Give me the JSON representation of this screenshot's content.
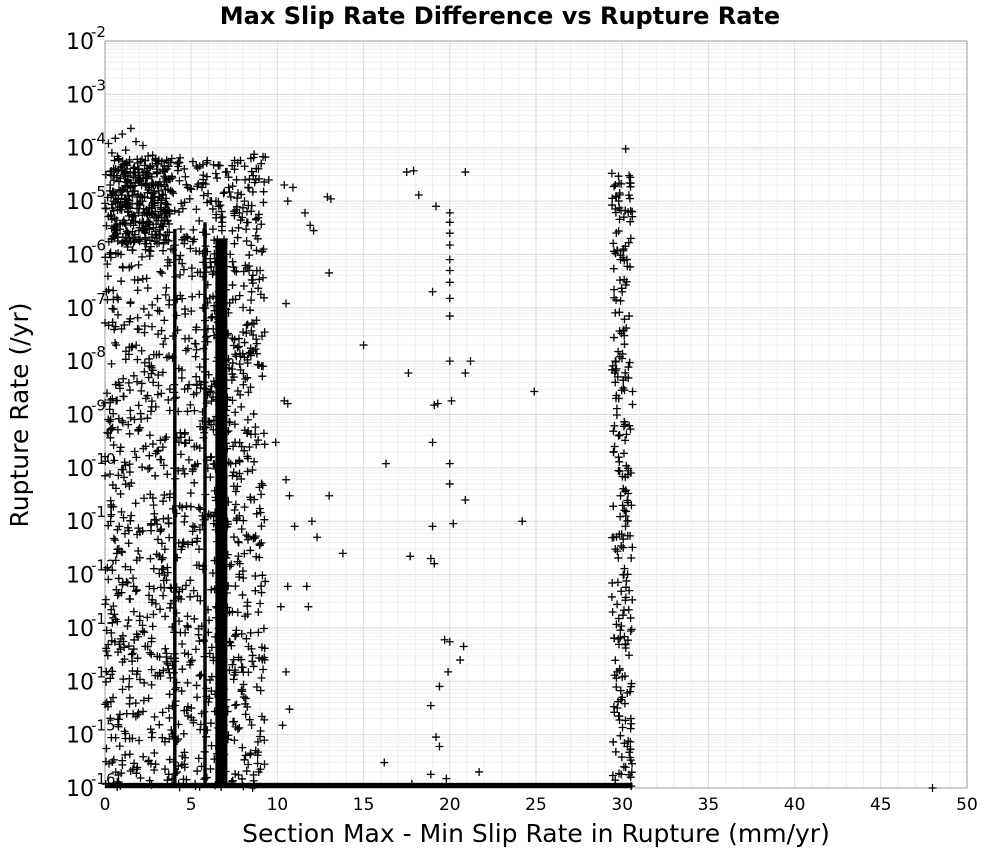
{
  "chart_data": {
    "type": "scatter",
    "title": "Max Slip Rate Difference vs Rupture Rate",
    "xlabel": "Section Max - Min Slip Rate in Rupture (mm/yr)",
    "ylabel": "Rupture Rate (/yr)",
    "xlim": [
      0,
      50
    ],
    "ylim": [
      1e-16,
      0.01
    ],
    "yscale": "log",
    "grid": true,
    "marker": "+",
    "marker_color": "#000000",
    "x_ticks": [
      "0",
      "5",
      "10",
      "15",
      "20",
      "25",
      "30",
      "35",
      "40",
      "45",
      "50"
    ],
    "y_ticks": [
      {
        "base": "10",
        "exp": "-2"
      },
      {
        "base": "10",
        "exp": "-3"
      },
      {
        "base": "10",
        "exp": "-4"
      },
      {
        "base": "10",
        "exp": "-5"
      },
      {
        "base": "10",
        "exp": "-6"
      },
      {
        "base": "10",
        "exp": "-7"
      },
      {
        "base": "10",
        "exp": "-8"
      },
      {
        "base": "10",
        "exp": "-9"
      },
      {
        "base": "10",
        "exp": "-10"
      },
      {
        "base": "10",
        "exp": "-11"
      },
      {
        "base": "10",
        "exp": "-12"
      },
      {
        "base": "10",
        "exp": "-13"
      },
      {
        "base": "10",
        "exp": "-14"
      },
      {
        "base": "10",
        "exp": "-15"
      },
      {
        "base": "10",
        "exp": "-16"
      }
    ],
    "points": [
      [
        0.2,
        0.00012
      ],
      [
        0.4,
        8e-05
      ],
      [
        0.6,
        0.00015
      ],
      [
        0.8,
        6e-05
      ],
      [
        1.0,
        0.00018
      ],
      [
        1.2,
        9e-05
      ],
      [
        1.5,
        0.00023
      ],
      [
        1.8,
        0.00013
      ],
      [
        2.2,
        0.00011
      ],
      [
        2.5,
        7e-05
      ],
      [
        3.0,
        5e-05
      ],
      [
        3.3,
        5.5e-05
      ],
      [
        3.7,
        4.5e-05
      ],
      [
        4.2,
        5e-05
      ],
      [
        4.6,
        4e-05
      ],
      [
        5.1,
        5.5e-05
      ],
      [
        5.5,
        4.5e-05
      ],
      [
        5.9,
        5.2e-05
      ],
      [
        6.3,
        4.8e-05
      ],
      [
        7.0,
        3.5e-05
      ],
      [
        7.7,
        5.2e-05
      ],
      [
        8.1,
        4.5e-05
      ],
      [
        8.6,
        3e-05
      ],
      [
        9.5,
        2.5e-05
      ],
      [
        0.3,
        2e-05
      ],
      [
        0.5,
        1e-05
      ],
      [
        0.7,
        3e-05
      ],
      [
        1.0,
        8e-06
      ],
      [
        1.3,
        1.5e-05
      ],
      [
        1.6,
        5e-06
      ],
      [
        2.0,
        2.5e-05
      ],
      [
        2.3,
        1.2e-05
      ],
      [
        2.7,
        6e-06
      ],
      [
        3.1,
        2e-05
      ],
      [
        3.5,
        9e-06
      ],
      [
        3.9,
        1.5e-05
      ],
      [
        4.4,
        3e-06
      ],
      [
        4.8,
        1.8e-05
      ],
      [
        5.3,
        7e-06
      ],
      [
        5.7,
        2.2e-05
      ],
      [
        6.1,
        1e-05
      ],
      [
        6.5,
        2.7e-05
      ],
      [
        6.8,
        4e-06
      ],
      [
        7.3,
        1.2e-05
      ],
      [
        7.8,
        6e-06
      ],
      [
        8.3,
        1.8e-05
      ],
      [
        8.8,
        3e-06
      ],
      [
        9.2,
        1.5e-05
      ],
      [
        10.4,
        2e-05
      ],
      [
        10.6,
        1e-05
      ],
      [
        10.9,
        1.8e-05
      ],
      [
        11.6,
        6e-06
      ],
      [
        11.9,
        3.5e-06
      ],
      [
        12.9,
        1.2e-05
      ],
      [
        13.1,
        1.1e-05
      ],
      [
        12.1,
        2.8e-06
      ],
      [
        13.0,
        4.5e-07
      ],
      [
        10.5,
        1.2e-07
      ],
      [
        9.0,
        5e-07
      ],
      [
        8.5,
        2e-07
      ],
      [
        15.0,
        2e-08
      ],
      [
        17.5,
        3.5e-05
      ],
      [
        17.9,
        3.7e-05
      ],
      [
        18.2,
        1.3e-05
      ],
      [
        19.2,
        8e-06
      ],
      [
        20.9,
        3.5e-05
      ],
      [
        20.0,
        6e-06
      ],
      [
        20.0,
        4e-06
      ],
      [
        20.0,
        2.5e-06
      ],
      [
        20.0,
        1.5e-06
      ],
      [
        20.0,
        8e-07
      ],
      [
        20.0,
        5e-07
      ],
      [
        20.0,
        3e-07
      ],
      [
        20.0,
        1.5e-07
      ],
      [
        19.0,
        2e-07
      ],
      [
        20.0,
        7e-08
      ],
      [
        20.0,
        1e-08
      ],
      [
        21.2,
        1e-08
      ],
      [
        17.6,
        6e-09
      ],
      [
        20.9,
        6e-09
      ],
      [
        24.9,
        2.7e-09
      ],
      [
        19.1,
        1.5e-09
      ],
      [
        19.3,
        1.6e-09
      ],
      [
        20.1,
        1.8e-09
      ],
      [
        10.4,
        1.8e-09
      ],
      [
        10.6,
        1.6e-09
      ],
      [
        19.0,
        3e-10
      ],
      [
        9.9,
        3e-10
      ],
      [
        16.3,
        1.2e-10
      ],
      [
        20.0,
        1.2e-10
      ],
      [
        10.5,
        6e-11
      ],
      [
        20.0,
        5e-11
      ],
      [
        13.0,
        3e-11
      ],
      [
        10.7,
        3e-11
      ],
      [
        20.9,
        2.5e-11
      ],
      [
        24.2,
        1e-11
      ],
      [
        19.0,
        8e-12
      ],
      [
        20.2,
        9e-12
      ],
      [
        12.0,
        1e-11
      ],
      [
        11.0,
        8e-12
      ],
      [
        12.3,
        5e-12
      ],
      [
        13.8,
        2.5e-12
      ],
      [
        17.7,
        2.2e-12
      ],
      [
        18.9,
        2e-12
      ],
      [
        19.1,
        1.6e-12
      ],
      [
        10.6,
        6e-13
      ],
      [
        10.2,
        2.5e-13
      ],
      [
        11.7,
        6e-13
      ],
      [
        11.8,
        2.5e-13
      ],
      [
        19.7,
        6e-14
      ],
      [
        20.0,
        5.5e-14
      ],
      [
        20.8,
        4.5e-14
      ],
      [
        20.6,
        2.5e-14
      ],
      [
        10.5,
        1.5e-14
      ],
      [
        19.9,
        1.5e-14
      ],
      [
        19.4,
        8e-15
      ],
      [
        18.9,
        3.5e-15
      ],
      [
        10.7,
        3e-15
      ],
      [
        10.3,
        1.5e-15
      ],
      [
        19.2,
        9e-16
      ],
      [
        19.4,
        6e-16
      ],
      [
        16.2,
        3e-16
      ],
      [
        21.7,
        2e-16
      ],
      [
        18.9,
        1.8e-16
      ],
      [
        19.8,
        1.5e-16
      ],
      [
        17.8,
        1.2e-16
      ],
      [
        48.0,
        1e-16
      ],
      [
        29.4,
        3.3e-05
      ],
      [
        29.6,
        2e-05
      ],
      [
        29.8,
        1e-05
      ],
      [
        30.2,
        9.5e-05
      ],
      [
        30.4,
        3e-05
      ],
      [
        30.1,
        5e-06
      ],
      [
        30.5,
        2e-06
      ],
      [
        29.9,
        8e-07
      ],
      [
        29.7,
        1.2e-06
      ],
      [
        30.3,
        6e-07
      ],
      [
        30.0,
        2e-07
      ],
      [
        30.4,
        7e-08
      ],
      [
        29.6,
        1e-08
      ],
      [
        30.2,
        5e-09
      ],
      [
        29.8,
        2e-09
      ],
      [
        30.1,
        6e-10
      ],
      [
        29.5,
        2e-10
      ],
      [
        30.5,
        8e-11
      ],
      [
        29.9,
        3e-11
      ],
      [
        30.3,
        1e-11
      ],
      [
        29.6,
        3e-12
      ],
      [
        30.1,
        1e-12
      ],
      [
        30.4,
        5e-13
      ],
      [
        29.8,
        1.5e-13
      ],
      [
        30.2,
        5e-14
      ],
      [
        29.7,
        1.5e-14
      ],
      [
        30.0,
        5e-15
      ],
      [
        30.5,
        2e-15
      ],
      [
        30.3,
        6e-16
      ],
      [
        30.1,
        2.5e-16
      ],
      [
        29.6,
        1.4e-16
      ]
    ]
  }
}
